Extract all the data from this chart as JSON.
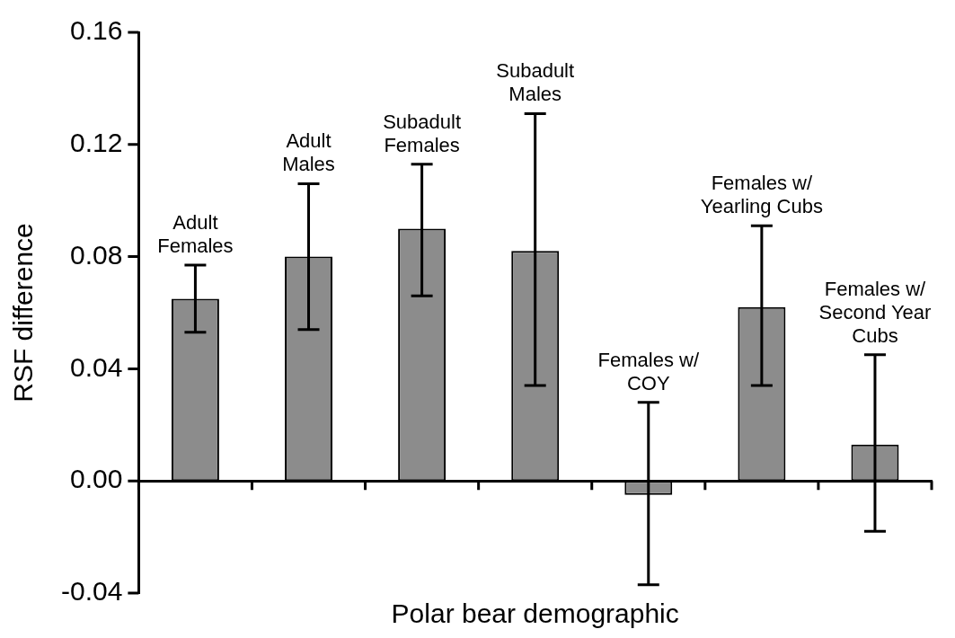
{
  "chart_data": {
    "type": "bar",
    "xlabel": "Polar bear demographic",
    "ylabel": "RSF difference",
    "categories": [
      "Adult\nFemales",
      "Adult\nMales",
      "Subadult\nFemales",
      "Subadult\nMales",
      "Females w/\nCOY",
      "Females w/\nYearling Cubs",
      "Females w/\nSecond Year\nCubs"
    ],
    "values": [
      0.065,
      0.08,
      0.09,
      0.082,
      -0.005,
      0.062,
      0.013
    ],
    "errors": [
      [
        0.053,
        0.077
      ],
      [
        0.054,
        0.106
      ],
      [
        0.066,
        0.113
      ],
      [
        0.034,
        0.131
      ],
      [
        -0.037,
        0.028
      ],
      [
        0.034,
        0.091
      ],
      [
        -0.018,
        0.045
      ]
    ],
    "color": "#8c8c8c",
    "ylim": [
      -0.04,
      0.16
    ],
    "yticks": [
      {
        "value": -0.04,
        "label": "-0.04"
      },
      {
        "value": 0,
        "label": "0.00"
      },
      {
        "value": 0.04,
        "label": "0.04"
      },
      {
        "value": 0.08,
        "label": "0.08"
      },
      {
        "value": 0.12,
        "label": "0.12"
      },
      {
        "value": 0.16,
        "label": "0.16"
      }
    ],
    "legend": false
  }
}
